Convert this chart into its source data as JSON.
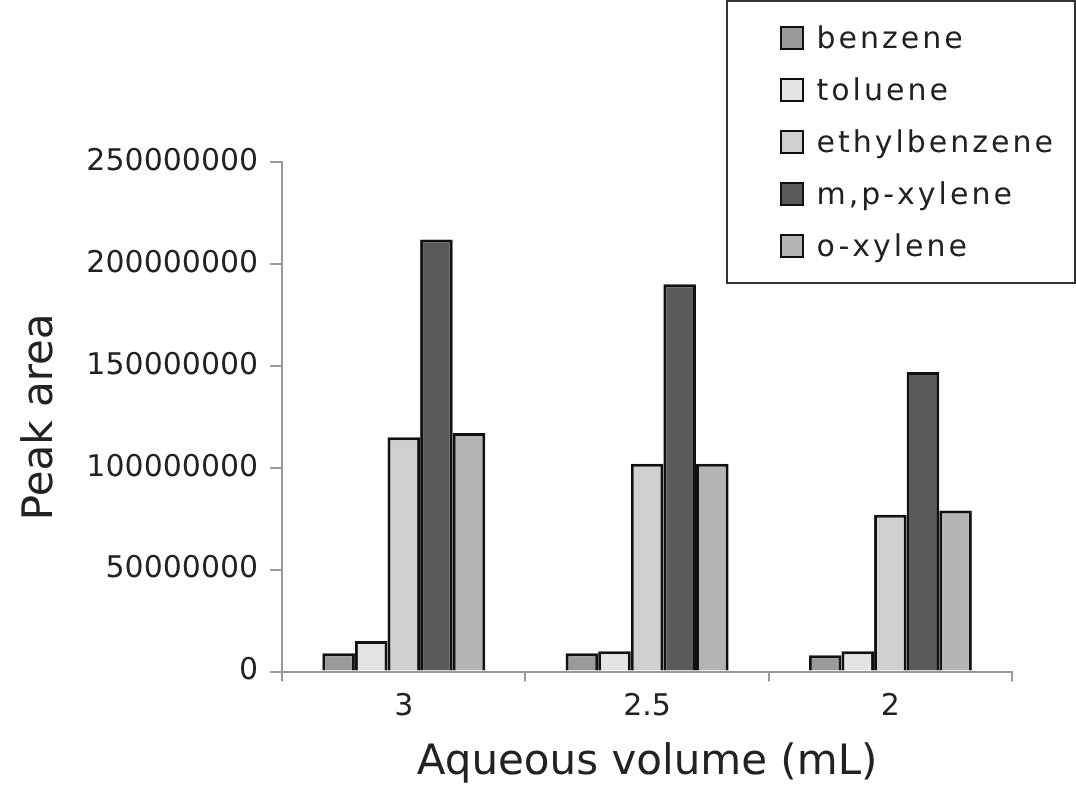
{
  "chart_data": {
    "type": "bar",
    "xlabel": "Aqueous volume (mL)",
    "ylabel": "Peak area",
    "categories": [
      "3",
      "2.5",
      "2"
    ],
    "series": [
      {
        "name": "benzene",
        "color": "#9a9a9a",
        "values": [
          9000000,
          9000000,
          8000000
        ]
      },
      {
        "name": "toluene",
        "color": "#e4e4e4",
        "values": [
          15000000,
          10000000,
          10000000
        ]
      },
      {
        "name": "ethylbenzene",
        "color": "#d0d0d0",
        "values": [
          115000000,
          102000000,
          77000000
        ]
      },
      {
        "name": "m,p-xylene",
        "color": "#5a5a5a",
        "values": [
          212000000,
          190000000,
          147000000
        ]
      },
      {
        "name": "o-xylene",
        "color": "#b4b4b4",
        "values": [
          117000000,
          102000000,
          79000000
        ]
      }
    ],
    "ylim": [
      0,
      250000000
    ],
    "yticks": [
      0,
      50000000,
      100000000,
      150000000,
      200000000,
      250000000
    ],
    "grid": false,
    "legend": "top right"
  }
}
